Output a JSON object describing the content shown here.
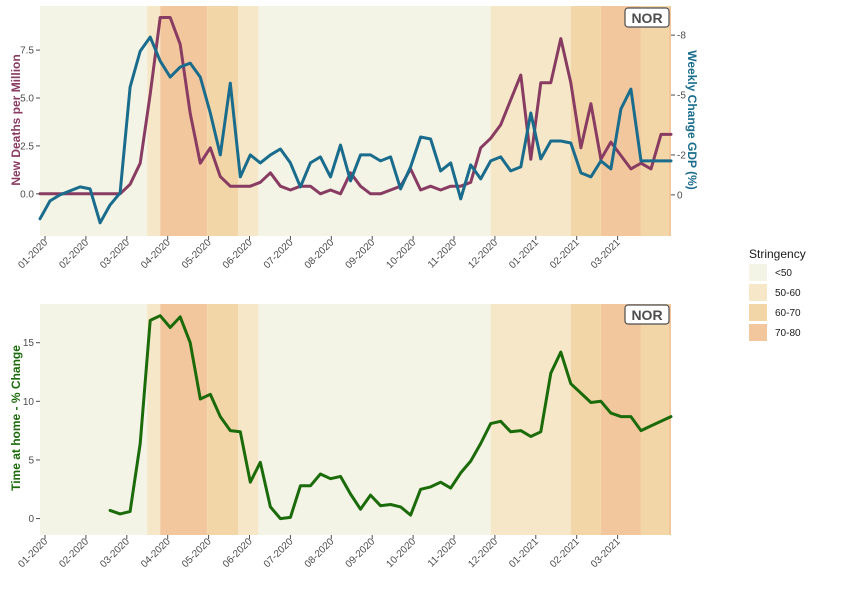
{
  "colors": {
    "stringency": [
      "#f3f3e6",
      "#f5e7c8",
      "#f3d6a8",
      "#f3c79e"
    ],
    "deaths": "#883c62",
    "gdp": "#1a6c8c",
    "home": "#1b6b0b",
    "tick_color": "#4d4d4d"
  },
  "legend": {
    "title": "Stringency",
    "entries": [
      "<50",
      "50-60",
      "60-70",
      "70-80"
    ]
  },
  "chart_data": [
    {
      "type": "line",
      "country_label": "NOR",
      "x_ticks": [
        "01-2020",
        "02-2020",
        "03-2020",
        "04-2020",
        "05-2020",
        "06-2020",
        "07-2020",
        "08-2020",
        "09-2020",
        "10-2020",
        "11-2020",
        "12-2020",
        "01-2021",
        "02-2021",
        "03-2021"
      ],
      "x_range_weeks": [
        0,
        63
      ],
      "stringency_bands": [
        {
          "start": 0,
          "end": 10.7,
          "level": 0
        },
        {
          "start": 10.7,
          "end": 12.0,
          "level": 1
        },
        {
          "start": 12.0,
          "end": 16.7,
          "level": 3
        },
        {
          "start": 16.7,
          "end": 19.8,
          "level": 2
        },
        {
          "start": 19.8,
          "end": 21.8,
          "level": 1
        },
        {
          "start": 21.8,
          "end": 45.0,
          "level": 0
        },
        {
          "start": 45.0,
          "end": 53.0,
          "level": 1
        },
        {
          "start": 53.0,
          "end": 56.0,
          "level": 2
        },
        {
          "start": 56.0,
          "end": 60.0,
          "level": 3
        },
        {
          "start": 60.0,
          "end": 62.8,
          "level": 2
        },
        {
          "start": 62.8,
          "end": 64.0,
          "level": 3
        }
      ],
      "left_axis": {
        "label": "New Deaths per Million",
        "ticks": [
          0.0,
          2.5,
          5.0,
          7.5
        ],
        "ylim": [
          -2.2,
          9.8
        ]
      },
      "right_axis": {
        "label": "Weekly Change GDP (%)",
        "ticks": [
          0,
          -2,
          -5,
          -8
        ],
        "ylim": [
          2.06,
          -9.46
        ]
      },
      "series": [
        {
          "name": "New Deaths per Million",
          "axis": "left",
          "x": [
            0,
            1,
            2,
            3,
            4,
            5,
            6,
            7,
            8,
            9,
            10,
            11,
            12,
            13,
            14,
            15,
            16,
            17,
            18,
            19,
            20,
            21,
            22,
            23,
            24,
            25,
            26,
            27,
            28,
            29,
            30,
            31,
            32,
            33,
            34,
            35,
            36,
            37,
            38,
            39,
            40,
            41,
            42,
            43,
            44,
            45,
            46,
            47,
            48,
            49,
            50,
            51,
            52,
            53,
            54,
            55,
            56,
            57,
            58,
            59,
            60,
            61,
            62,
            63
          ],
          "values": [
            0,
            0,
            0,
            0,
            0,
            0,
            0,
            0,
            0,
            0.5,
            1.6,
            5.2,
            9.2,
            9.2,
            7.8,
            4.2,
            1.6,
            2.4,
            0.9,
            0.4,
            0.4,
            0.4,
            0.6,
            1.1,
            0.4,
            0.2,
            0.4,
            0.4,
            0.0,
            0.2,
            0.0,
            1.1,
            0.4,
            0.0,
            0.0,
            0.2,
            0.4,
            1.3,
            0.2,
            0.4,
            0.2,
            0.4,
            0.4,
            0.6,
            2.4,
            2.9,
            3.6,
            4.9,
            6.2,
            1.8,
            5.8,
            5.8,
            8.1,
            5.8,
            2.4,
            4.7,
            1.8,
            2.7,
            2.0,
            1.3,
            1.6,
            1.3,
            3.1,
            3.1
          ]
        },
        {
          "name": "Weekly Change GDP (%)",
          "axis": "right",
          "x": [
            0,
            1,
            2,
            3,
            4,
            5,
            6,
            7,
            8,
            9,
            10,
            11,
            12,
            13,
            14,
            15,
            16,
            17,
            18,
            19,
            20,
            21,
            22,
            23,
            24,
            25,
            26,
            27,
            28,
            29,
            30,
            31,
            32,
            33,
            34,
            35,
            36,
            37,
            38,
            39,
            40,
            41,
            42,
            43,
            44,
            45,
            46,
            47,
            48,
            49,
            50,
            51,
            52,
            53,
            54,
            55,
            56,
            57,
            58,
            59,
            60,
            61,
            62,
            63
          ],
          "values": [
            1.2,
            0.3,
            0,
            -0.2,
            -0.4,
            -0.3,
            1.4,
            0.5,
            -0.1,
            -5.4,
            -7.2,
            -7.9,
            -6.7,
            -5.9,
            -6.4,
            -6.6,
            -5.9,
            -4.1,
            -2.0,
            -5.6,
            -0.9,
            -2.0,
            -1.6,
            -2.0,
            -2.3,
            -1.6,
            -0.4,
            -1.6,
            -1.9,
            -0.9,
            -2.5,
            -0.7,
            -2.0,
            -2.0,
            -1.7,
            -1.9,
            -0.3,
            -1.4,
            -2.9,
            -2.8,
            -1.2,
            -1.6,
            0.2,
            -1.5,
            -0.8,
            -1.7,
            -1.9,
            -1.2,
            -1.4,
            -4.1,
            -1.8,
            -2.7,
            -2.7,
            -2.6,
            -1.1,
            -0.9,
            -1.7,
            -1.3,
            -4.3,
            -5.3,
            -1.7,
            -1.7,
            -1.7,
            -1.7
          ]
        }
      ]
    },
    {
      "type": "line",
      "country_label": "NOR",
      "x_ticks": [
        "01-2020",
        "02-2020",
        "03-2020",
        "04-2020",
        "05-2020",
        "06-2020",
        "07-2020",
        "08-2020",
        "09-2020",
        "10-2020",
        "11-2020",
        "12-2020",
        "01-2021",
        "02-2021",
        "03-2021"
      ],
      "x_range_weeks": [
        0,
        63
      ],
      "stringency_bands": [
        {
          "start": 0,
          "end": 10.7,
          "level": 0
        },
        {
          "start": 10.7,
          "end": 12.0,
          "level": 1
        },
        {
          "start": 12.0,
          "end": 16.7,
          "level": 3
        },
        {
          "start": 16.7,
          "end": 19.8,
          "level": 2
        },
        {
          "start": 19.8,
          "end": 21.8,
          "level": 1
        },
        {
          "start": 21.8,
          "end": 45.0,
          "level": 0
        },
        {
          "start": 45.0,
          "end": 53.0,
          "level": 1
        },
        {
          "start": 53.0,
          "end": 56.0,
          "level": 2
        },
        {
          "start": 56.0,
          "end": 60.0,
          "level": 3
        },
        {
          "start": 60.0,
          "end": 62.8,
          "level": 2
        },
        {
          "start": 62.8,
          "end": 64.0,
          "level": 3
        }
      ],
      "left_axis": {
        "label": "Time at home - % Change",
        "ticks": [
          0,
          5,
          10,
          15
        ],
        "ylim": [
          -1.4,
          18.3
        ]
      },
      "series": [
        {
          "name": "Time at home - % Change",
          "axis": "left",
          "x": [
            7,
            8,
            9,
            10,
            11,
            12,
            13,
            14,
            15,
            16,
            17,
            18,
            19,
            20,
            21,
            22,
            23,
            24,
            25,
            26,
            27,
            28,
            29,
            30,
            31,
            32,
            33,
            34,
            35,
            36,
            37,
            38,
            39,
            40,
            41,
            42,
            43,
            44,
            45,
            46,
            47,
            48,
            49,
            50,
            51,
            52,
            53,
            54,
            55,
            56,
            57,
            58,
            59,
            60,
            61,
            62,
            63
          ],
          "values": [
            0.7,
            0.4,
            0.6,
            6.4,
            16.9,
            17.3,
            16.3,
            17.2,
            15.0,
            10.2,
            10.6,
            8.7,
            7.5,
            7.4,
            3.1,
            4.8,
            1.0,
            0.0,
            0.1,
            2.8,
            2.8,
            3.8,
            3.4,
            3.6,
            2.1,
            0.8,
            2.0,
            1.1,
            1.2,
            1.0,
            0.3,
            2.5,
            2.7,
            3.1,
            2.6,
            3.9,
            4.9,
            6.4,
            8.1,
            8.3,
            7.4,
            7.5,
            7.0,
            7.4,
            12.4,
            14.2,
            11.5,
            10.7,
            9.9,
            10.0,
            9.0,
            8.7,
            8.7,
            7.5,
            7.9,
            8.3,
            8.7
          ]
        }
      ]
    }
  ]
}
